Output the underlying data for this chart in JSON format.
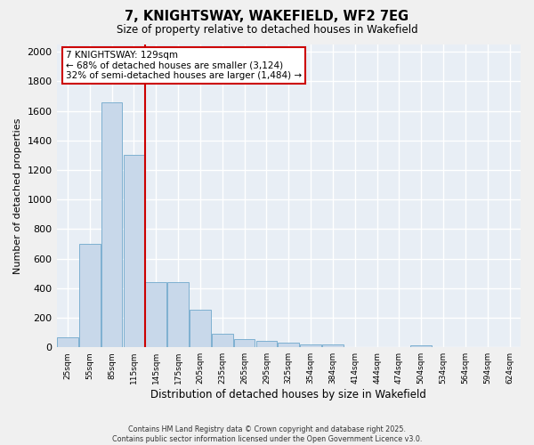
{
  "title": "7, KNIGHTSWAY, WAKEFIELD, WF2 7EG",
  "subtitle": "Size of property relative to detached houses in Wakefield",
  "xlabel": "Distribution of detached houses by size in Wakefield",
  "ylabel": "Number of detached properties",
  "bar_color": "#c8d8ea",
  "bar_edgecolor": "#6fa8cc",
  "axes_bg": "#e8eef5",
  "fig_bg": "#f0f0f0",
  "grid_color": "#ffffff",
  "vline_color": "#cc0000",
  "annotation_text": "7 KNIGHTSWAY: 129sqm\n← 68% of detached houses are smaller (3,124)\n32% of semi-detached houses are larger (1,484) →",
  "annotation_edge_color": "#cc0000",
  "categories": [
    "25sqm",
    "55sqm",
    "85sqm",
    "115sqm",
    "145sqm",
    "175sqm",
    "205sqm",
    "235sqm",
    "265sqm",
    "295sqm",
    "325sqm",
    "354sqm",
    "384sqm",
    "414sqm",
    "444sqm",
    "474sqm",
    "504sqm",
    "534sqm",
    "564sqm",
    "594sqm",
    "624sqm"
  ],
  "values": [
    65,
    700,
    1660,
    1305,
    440,
    440,
    255,
    90,
    55,
    45,
    30,
    20,
    20,
    0,
    0,
    0,
    15,
    0,
    0,
    0,
    0
  ],
  "ylim": [
    0,
    2050
  ],
  "yticks": [
    0,
    200,
    400,
    600,
    800,
    1000,
    1200,
    1400,
    1600,
    1800,
    2000
  ],
  "footer": "Contains HM Land Registry data © Crown copyright and database right 2025.\nContains public sector information licensed under the Open Government Licence v3.0.",
  "figsize": [
    6.0,
    5.0
  ],
  "dpi": 100
}
